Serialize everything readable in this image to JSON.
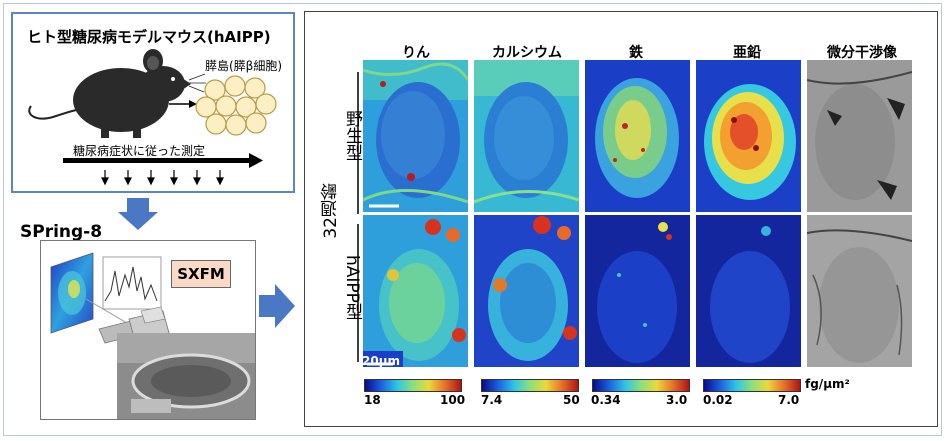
{
  "model_box": {
    "title": "ヒト型糖尿病モデルマウス(hAIPP)",
    "islet_label": "膵島(膵β細胞)",
    "timeline_label": "糖尿病症状に従った測定"
  },
  "facility": {
    "name": "SPring-8",
    "method": "SXFM"
  },
  "maps": {
    "columns": [
      "りん",
      "カルシウム",
      "鉄",
      "亜鉛",
      "微分干渉像"
    ],
    "rows": [
      "野生型",
      "hAIPP型"
    ],
    "age_label": "32週齢",
    "scale_bar_label": "20μm",
    "colorbars": [
      {
        "min": "18",
        "max": "100"
      },
      {
        "min": "7.4",
        "max": "50"
      },
      {
        "min": "0.34",
        "max": "3.0"
      },
      {
        "min": "0.02",
        "max": "7.0"
      }
    ],
    "unit": "fg/μm²"
  },
  "colors": {
    "frame_blue": "#5b86bf",
    "arrow_blue": "#4a78c4",
    "sxfm_fill": "#fbd9c7",
    "islet_cell": "#fcefc4"
  }
}
